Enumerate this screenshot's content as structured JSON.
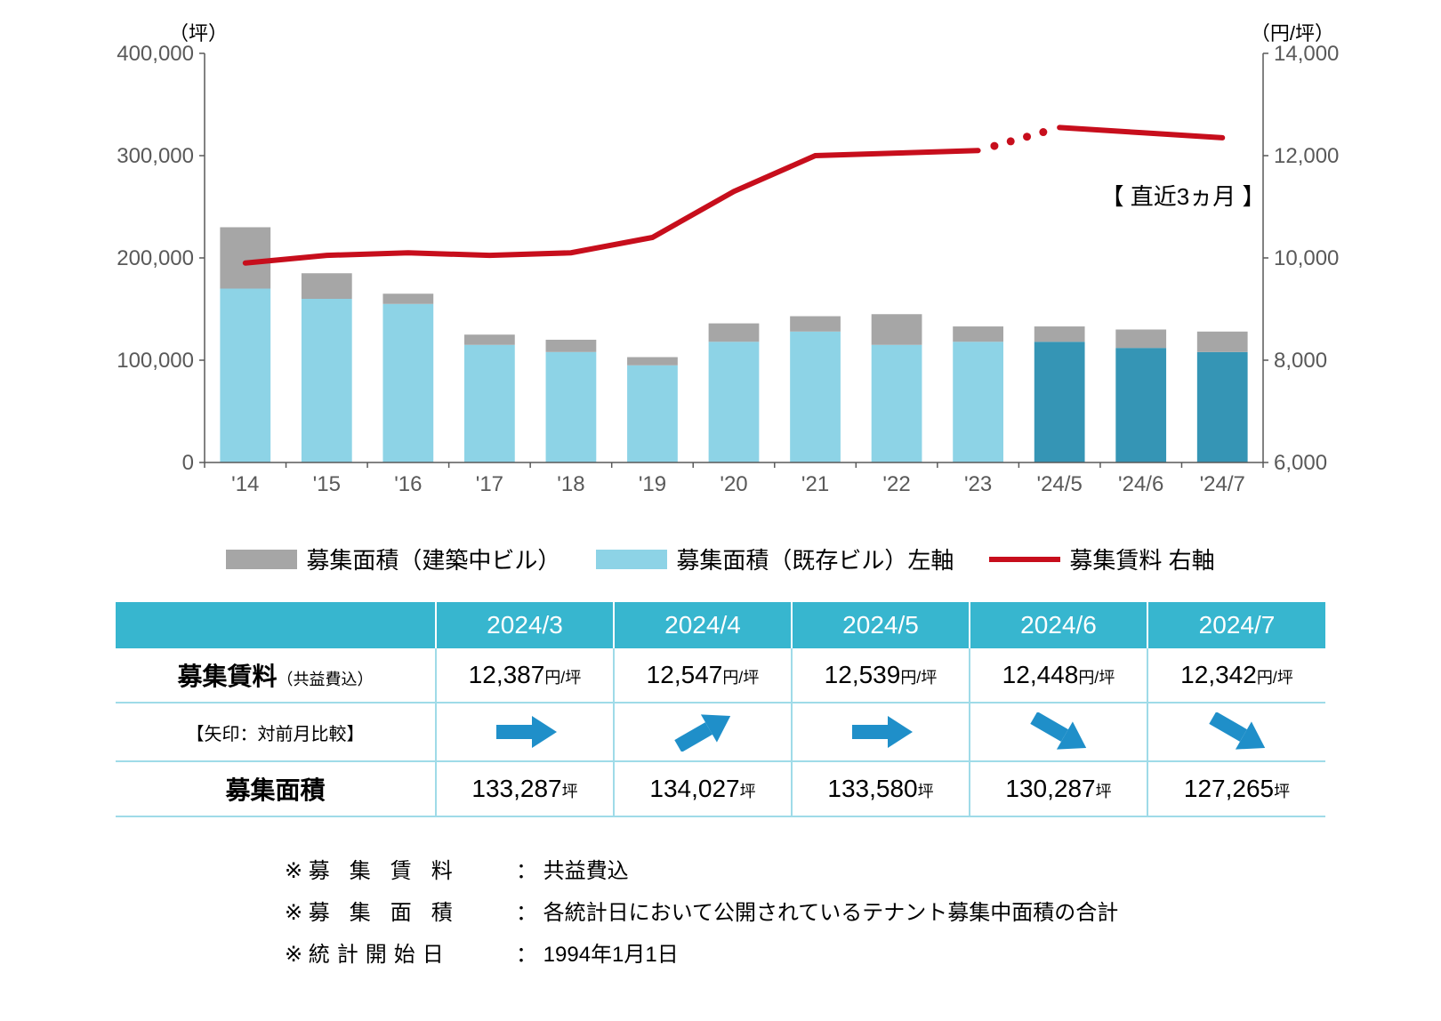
{
  "chart": {
    "type": "bar+line",
    "left_axis_label": "（坪）",
    "right_axis_label": "（円/坪）",
    "left_ylim": [
      0,
      400000
    ],
    "left_tick_step": 100000,
    "left_ticks": [
      "0",
      "100,000",
      "200,000",
      "300,000",
      "400,000"
    ],
    "right_ylim": [
      6000,
      14000
    ],
    "right_tick_step": 2000,
    "right_ticks": [
      "6,000",
      "8,000",
      "10,000",
      "12,000",
      "14,000"
    ],
    "categories": [
      "'14",
      "'15",
      "'16",
      "'17",
      "'18",
      "'19",
      "'20",
      "'21",
      "'22",
      "'23",
      "'24/5",
      "'24/6",
      "'24/7"
    ],
    "bar_existing": [
      170000,
      160000,
      155000,
      115000,
      108000,
      95000,
      118000,
      128000,
      115000,
      118000,
      118000,
      112000,
      108000
    ],
    "bar_construction": [
      60000,
      25000,
      10000,
      10000,
      12000,
      8000,
      18000,
      15000,
      30000,
      15000,
      15000,
      18000,
      20000
    ],
    "recent_highlight_start_index": 10,
    "line_rent": [
      9900,
      10050,
      10100,
      10050,
      10100,
      10400,
      11300,
      12000,
      12050,
      12100,
      12550,
      12450,
      12350
    ],
    "annotation_text": "【 直近3ヵ月 】",
    "colors": {
      "bar_existing": "#8dd3e6",
      "bar_existing_recent": "#3595b5",
      "bar_construction": "#a6a6a6",
      "line": "#c70e1c",
      "axis": "#595959",
      "tick_text": "#595959",
      "background": "#ffffff"
    },
    "bar_width_ratio": 0.62,
    "line_width": 6,
    "font_size_ticks": 24,
    "font_size_axis_label": 22
  },
  "legend": {
    "construction": "募集面積（建築中ビル）",
    "existing": "募集面積（既存ビル）左軸",
    "line": "募集賃料 右軸"
  },
  "table": {
    "months": [
      "2024/3",
      "2024/4",
      "2024/5",
      "2024/6",
      "2024/7"
    ],
    "row1_label": "募集賃料",
    "row1_sub": "（共益費込）",
    "row1_unit": "円/坪",
    "row1_values": [
      "12,387",
      "12,547",
      "12,539",
      "12,448",
      "12,342"
    ],
    "row2_label": "【矢印：対前月比較】",
    "row2_arrows": [
      "flat",
      "up",
      "flat",
      "down",
      "down"
    ],
    "row3_label": "募集面積",
    "row3_unit": "坪",
    "row3_values": [
      "133,287",
      "134,027",
      "133,580",
      "130,287",
      "127,265"
    ],
    "arrow_color": "#1f8fc9"
  },
  "notes": {
    "prefix": "※",
    "items": [
      {
        "label": "募集賃料",
        "text": "共益費込"
      },
      {
        "label": "募集面積",
        "text": "各統計日において公開されているテナント募集中面積の合計"
      },
      {
        "label": "統計開始日",
        "text": "1994年1月1日"
      }
    ]
  }
}
